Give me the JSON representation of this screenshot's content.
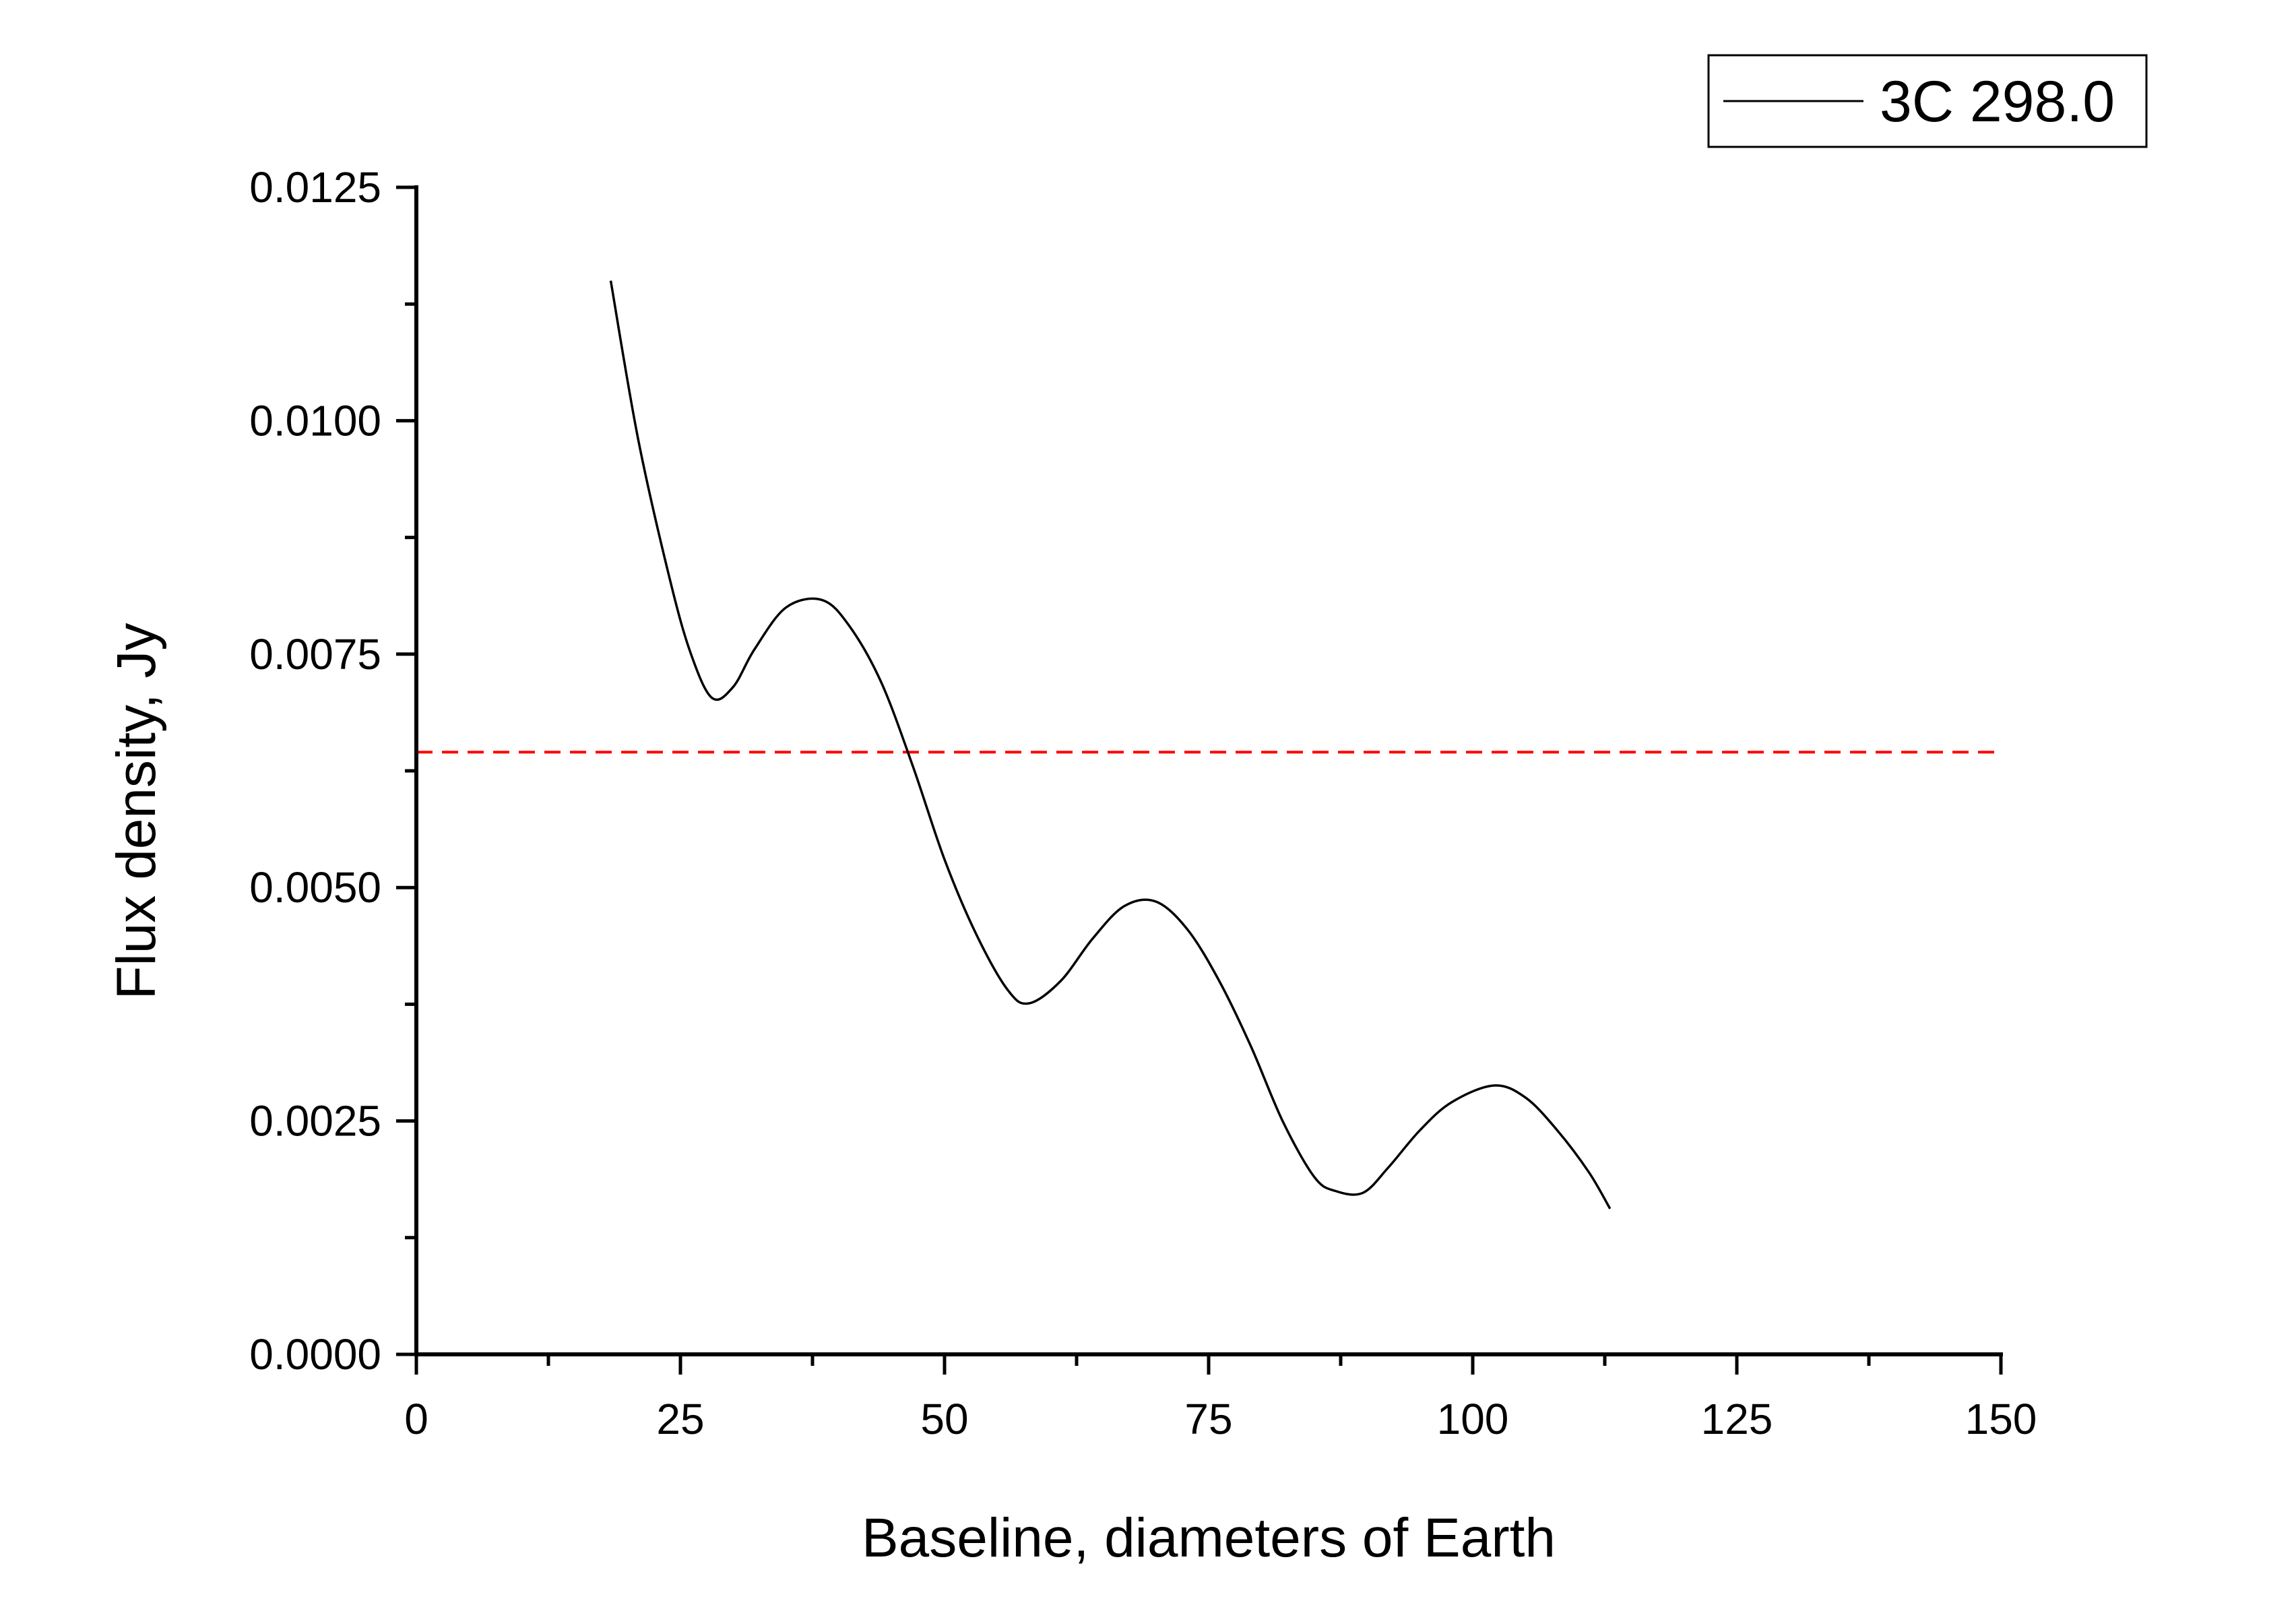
{
  "chart_data": {
    "type": "line",
    "title": "",
    "xlabel": "Baseline, diameters of Earth",
    "ylabel": "Flux density, Jy",
    "xlim": [
      0,
      150
    ],
    "ylim": [
      0,
      0.0125
    ],
    "x_ticks": [
      0,
      25,
      50,
      75,
      100,
      125,
      150
    ],
    "x_tick_labels": [
      "0",
      "25",
      "50",
      "75",
      "100",
      "125",
      "150"
    ],
    "y_ticks": [
      0,
      0.0025,
      0.005,
      0.0075,
      0.01,
      0.0125
    ],
    "y_tick_labels": [
      "0.0000",
      "0.0025",
      "0.0050",
      "0.0075",
      "0.0100",
      "0.0125"
    ],
    "grid": false,
    "legend_position": "top-right",
    "series": [
      {
        "name": "3C 298.0",
        "color": "#000000",
        "line_style": "solid",
        "x": [
          18.4,
          21,
          24,
          26,
          28,
          30,
          32,
          35,
          38.4,
          41,
          44,
          47,
          50,
          53,
          56,
          58,
          61,
          64,
          67,
          70,
          73,
          76,
          79,
          82,
          85,
          87,
          89.6,
          92,
          95,
          98,
          102,
          105,
          108,
          111,
          113
        ],
        "y": [
          0.0115,
          0.0098,
          0.0083,
          0.0075,
          0.00703,
          0.00715,
          0.00755,
          0.008,
          0.00808,
          0.0078,
          0.0072,
          0.0063,
          0.0053,
          0.0045,
          0.0039,
          0.00376,
          0.004,
          0.00445,
          0.0048,
          0.00485,
          0.00455,
          0.004,
          0.0033,
          0.0025,
          0.0019,
          0.00175,
          0.00173,
          0.002,
          0.0024,
          0.0027,
          0.00288,
          0.00275,
          0.0024,
          0.00195,
          0.00156
        ]
      }
    ],
    "reference_lines": [
      {
        "orientation": "horizontal",
        "y": 0.00645,
        "color": "#ff0000",
        "line_style": "dashed"
      }
    ]
  }
}
